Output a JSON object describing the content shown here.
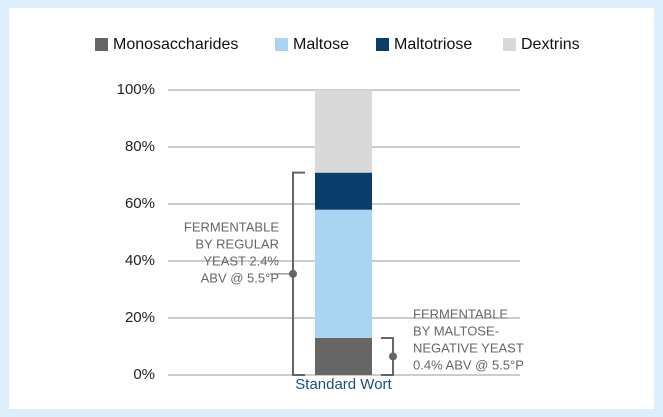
{
  "chart_data": {
    "type": "stacked_bar",
    "categories": [
      "Standard Wort"
    ],
    "series": [
      {
        "name": "Monosaccharides",
        "color": "#666666",
        "values": [
          13
        ]
      },
      {
        "name": "Maltose",
        "color": "#a9d5f3",
        "values": [
          45
        ]
      },
      {
        "name": "Maltotriose",
        "color": "#0b3d6b",
        "values": [
          13
        ]
      },
      {
        "name": "Dextrins",
        "color": "#d9d9d9",
        "values": [
          29
        ]
      }
    ],
    "ylim": [
      0,
      100
    ],
    "yticks": [
      {
        "value": 0,
        "label": "0%"
      },
      {
        "value": 20,
        "label": "20%"
      },
      {
        "value": 40,
        "label": "40%"
      },
      {
        "value": 60,
        "label": "60%"
      },
      {
        "value": 80,
        "label": "80%"
      },
      {
        "value": 100,
        "label": "100%"
      }
    ],
    "grid": true,
    "legend": "top",
    "annotations": [
      {
        "lines": [
          "FERMENTABLE",
          "BY REGULAR",
          "YEAST 2.4%",
          "ABV @ 5.5°P"
        ]
      },
      {
        "lines": [
          "FERMENTABLE",
          "BY MALTOSE-",
          "NEGATIVE YEAST",
          "0.4% ABV @ 5.5°P"
        ]
      }
    ]
  }
}
